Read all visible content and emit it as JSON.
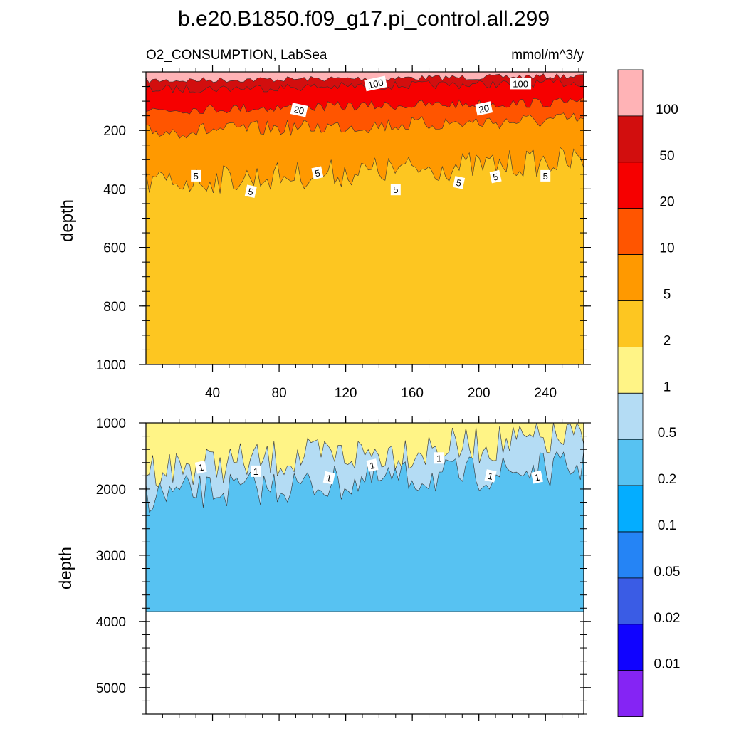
{
  "chart_data": {
    "type": "heatmap",
    "title": "b.e20.B1850.f09_g17.pi_control.all.299",
    "left_subtitle": "O2_CONSUMPTION, LabSea",
    "right_subtitle": "mmol/m^3/y",
    "colorbar": {
      "levels": [
        "100",
        "50",
        "20",
        "10",
        "5",
        "2",
        "1",
        "0.5",
        "0.2",
        "0.1",
        "0.05",
        "0.02",
        "0.01"
      ],
      "colors": [
        "#ffb3b6",
        "#d20e0e",
        "#f60000",
        "#ff5500",
        "#ff9900",
        "#fdc621",
        "#fff486",
        "#b4dcf4",
        "#57c2f2",
        "#04adff",
        "#2584f5",
        "#3a5ce5",
        "#1003ff",
        "#8524f4"
      ]
    },
    "panels": [
      {
        "name": "upper",
        "ylabel": "depth",
        "ylim": [
          1000,
          0
        ],
        "yticks": [
          "200",
          "400",
          "600",
          "800",
          "1000"
        ],
        "xlim": [
          0,
          263
        ],
        "xticks": [
          "40",
          "80",
          "120",
          "160",
          "200",
          "240"
        ],
        "bands": [
          {
            "level_band": "100+",
            "color": "#ffb3b6",
            "base_depth": 30
          },
          {
            "level_band": "50-100",
            "color": "#d20e0e",
            "base_depth": 60
          },
          {
            "level_band": "20-50",
            "color": "#f60000",
            "base_depth": 130
          },
          {
            "level_band": "10-20",
            "color": "#ff5500",
            "base_depth": 205
          },
          {
            "level_band": "5-10",
            "color": "#ff9900",
            "base_depth": 380
          },
          {
            "level_band": "2-5",
            "color": "#fdc621",
            "base_depth": 1000
          }
        ],
        "contour_labels": [
          {
            "text": "100",
            "x": 138,
            "depth": 40
          },
          {
            "text": "100",
            "x": 225,
            "depth": 40
          },
          {
            "text": "20",
            "x": 92,
            "depth": 130
          },
          {
            "text": "20",
            "x": 203,
            "depth": 125
          },
          {
            "text": "5",
            "x": 30,
            "depth": 355
          },
          {
            "text": "5",
            "x": 63,
            "depth": 408
          },
          {
            "text": "5",
            "x": 103,
            "depth": 345
          },
          {
            "text": "5",
            "x": 150,
            "depth": 402
          },
          {
            "text": "5",
            "x": 188,
            "depth": 378
          },
          {
            "text": "5",
            "x": 210,
            "depth": 358
          },
          {
            "text": "5",
            "x": 240,
            "depth": 355
          }
        ]
      },
      {
        "name": "lower",
        "ylabel": "depth",
        "ylim": [
          5400,
          1000
        ],
        "yticks": [
          "1000",
          "2000",
          "3000",
          "4000",
          "5000"
        ],
        "xlim": [
          0,
          263
        ],
        "bands": [
          {
            "level_band": "1-2",
            "color": "#fff486",
            "base_depth": 1700
          },
          {
            "level_band": "0.5-1",
            "color": "#b4dcf4",
            "base_depth": 2100
          },
          {
            "level_band": "0.2-0.5",
            "color": "#57c2f2",
            "base_depth": 3850
          }
        ],
        "contour_labels": [
          {
            "text": "1",
            "x": 33,
            "depth": 1670
          },
          {
            "text": "1",
            "x": 66,
            "depth": 1730
          },
          {
            "text": "1",
            "x": 110,
            "depth": 1830
          },
          {
            "text": "1",
            "x": 136,
            "depth": 1640
          },
          {
            "text": "1",
            "x": 176,
            "depth": 1530
          },
          {
            "text": "1",
            "x": 207,
            "depth": 1800
          },
          {
            "text": "1",
            "x": 235,
            "depth": 1820
          }
        ]
      }
    ]
  }
}
